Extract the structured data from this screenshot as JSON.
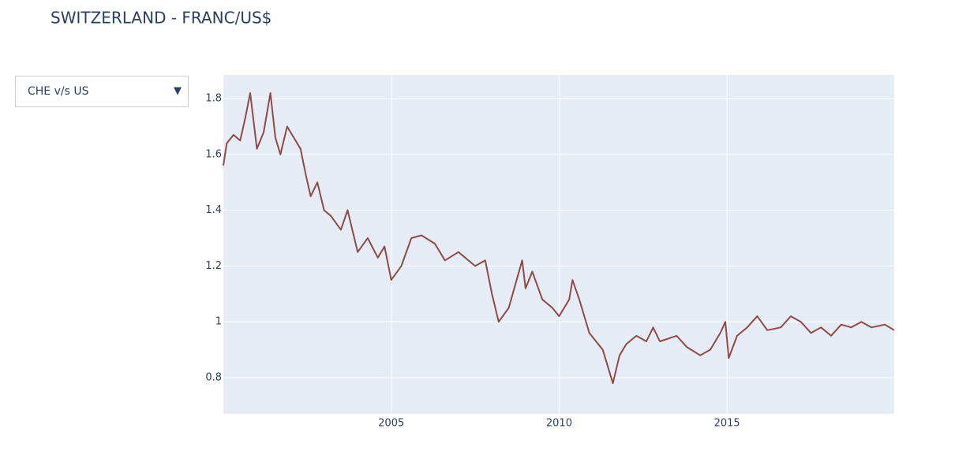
{
  "controls": {
    "dropdown": "CHE v/s US"
  },
  "chart_data": {
    "type": "line",
    "title": "SWITZERLAND - FRANC/US$",
    "x": [
      2000.0,
      2000.1,
      2000.3,
      2000.5,
      2000.65,
      2000.8,
      2001.0,
      2001.2,
      2001.4,
      2001.55,
      2001.7,
      2001.9,
      2002.1,
      2002.3,
      2002.45,
      2002.6,
      2002.8,
      2003.0,
      2003.2,
      2003.5,
      2003.7,
      2004.0,
      2004.3,
      2004.6,
      2004.8,
      2005.0,
      2005.3,
      2005.6,
      2005.9,
      2006.3,
      2006.6,
      2007.0,
      2007.5,
      2007.8,
      2008.0,
      2008.2,
      2008.5,
      2008.9,
      2009.0,
      2009.2,
      2009.5,
      2009.8,
      2010.0,
      2010.3,
      2010.4,
      2010.6,
      2010.9,
      2011.3,
      2011.6,
      2011.8,
      2012.0,
      2012.3,
      2012.6,
      2012.8,
      2013.0,
      2013.5,
      2013.8,
      2014.2,
      2014.5,
      2014.8,
      2014.95,
      2015.05,
      2015.3,
      2015.6,
      2015.9,
      2016.2,
      2016.6,
      2016.9,
      2017.2,
      2017.5,
      2017.8,
      2018.1,
      2018.4,
      2018.7,
      2019.0,
      2019.3,
      2019.7,
      2019.98
    ],
    "values": [
      1.56,
      1.64,
      1.67,
      1.65,
      1.73,
      1.82,
      1.62,
      1.68,
      1.82,
      1.66,
      1.6,
      1.7,
      1.66,
      1.62,
      1.53,
      1.45,
      1.5,
      1.4,
      1.38,
      1.33,
      1.4,
      1.25,
      1.3,
      1.23,
      1.27,
      1.15,
      1.2,
      1.3,
      1.31,
      1.28,
      1.22,
      1.25,
      1.2,
      1.22,
      1.1,
      1.0,
      1.05,
      1.22,
      1.12,
      1.18,
      1.08,
      1.05,
      1.02,
      1.08,
      1.15,
      1.08,
      0.96,
      0.9,
      0.78,
      0.88,
      0.92,
      0.95,
      0.93,
      0.98,
      0.93,
      0.95,
      0.91,
      0.88,
      0.9,
      0.96,
      1.0,
      0.87,
      0.95,
      0.98,
      1.02,
      0.97,
      0.98,
      1.02,
      1.0,
      0.96,
      0.98,
      0.95,
      0.99,
      0.98,
      1.0,
      0.98,
      0.99,
      0.97
    ],
    "color": "#8e4b45",
    "xlim": [
      2000.0,
      2019.98
    ],
    "xticks": [
      2005,
      2010,
      2015
    ],
    "ylim": [
      0.67,
      1.885
    ],
    "yticks": [
      0.8,
      1,
      1.2,
      1.4,
      1.6,
      1.8
    ],
    "grid": true
  }
}
